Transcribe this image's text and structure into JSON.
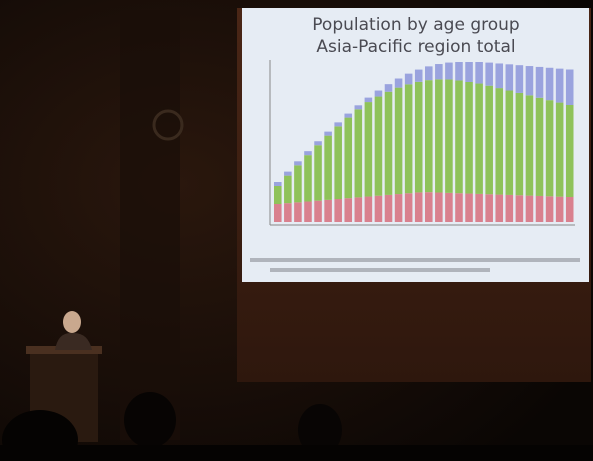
{
  "slide": {
    "title_line_1": "Population by age group",
    "title_line_2": "Asia-Pacific region total"
  }
}
